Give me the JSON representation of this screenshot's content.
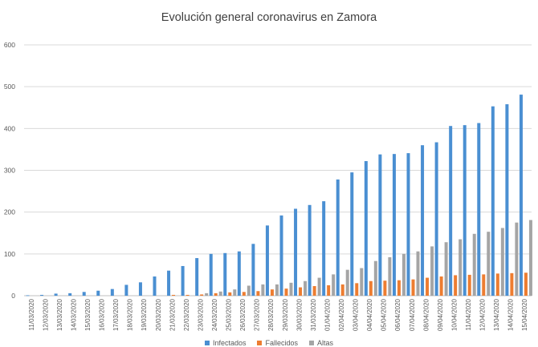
{
  "chart_data": {
    "type": "bar",
    "title": "Evolución general coronavirus en Zamora",
    "xlabel": "",
    "ylabel": "",
    "ylim": [
      0,
      600
    ],
    "yticks": [
      0,
      100,
      200,
      300,
      400,
      500,
      600
    ],
    "grid": true,
    "legend_position": "bottom",
    "categories": [
      "11/03/2020",
      "12/03/2020",
      "13/03/2020",
      "14/03/2020",
      "15/03/2020",
      "16/03/2020",
      "17/03/2020",
      "18/03/2020",
      "19/03/2020",
      "20/03/2020",
      "21/03/2020",
      "22/03/2020",
      "23/03/2020",
      "24/03/2020",
      "25/03/2020",
      "26/03/2020",
      "27/03/2020",
      "28/03/2020",
      "29/03/2020",
      "30/03/2020",
      "31/03/2020",
      "01/04/2020",
      "02/04/2020",
      "03/04/2020",
      "04/04/2020",
      "05/04/2020",
      "06/04/2020",
      "07/04/2020",
      "08/04/2020",
      "09/04/2020",
      "10/04/2020",
      "11/04/2020",
      "12/04/2020",
      "13/04/2020",
      "14/04/2020",
      "15/04/2020"
    ],
    "series": [
      {
        "name": "Infectados",
        "color": "#4a8fd2",
        "values": [
          1,
          2,
          5,
          6,
          9,
          12,
          16,
          26,
          32,
          46,
          60,
          71,
          90,
          100,
          102,
          106,
          124,
          168,
          192,
          208,
          217,
          226,
          278,
          295,
          322,
          338,
          339,
          341,
          360,
          367,
          406,
          408,
          413,
          453,
          458,
          481
        ]
      },
      {
        "name": "Fallecidos",
        "color": "#ed7d31",
        "values": [
          0,
          0,
          0,
          0,
          0,
          0,
          0,
          0,
          0,
          0,
          2,
          2,
          3,
          6,
          8,
          9,
          11,
          15,
          17,
          20,
          23,
          25,
          27,
          30,
          35,
          36,
          37,
          39,
          43,
          46,
          49,
          50,
          51,
          53,
          54,
          55
        ]
      },
      {
        "name": "Altas",
        "color": "#a5a5a5",
        "values": [
          0,
          0,
          0,
          0,
          0,
          0,
          0,
          0,
          0,
          0,
          0,
          0,
          6,
          10,
          15,
          24,
          27,
          27,
          31,
          35,
          43,
          51,
          62,
          66,
          83,
          92,
          100,
          106,
          118,
          128,
          135,
          148,
          153,
          162,
          175,
          181
        ]
      }
    ]
  }
}
